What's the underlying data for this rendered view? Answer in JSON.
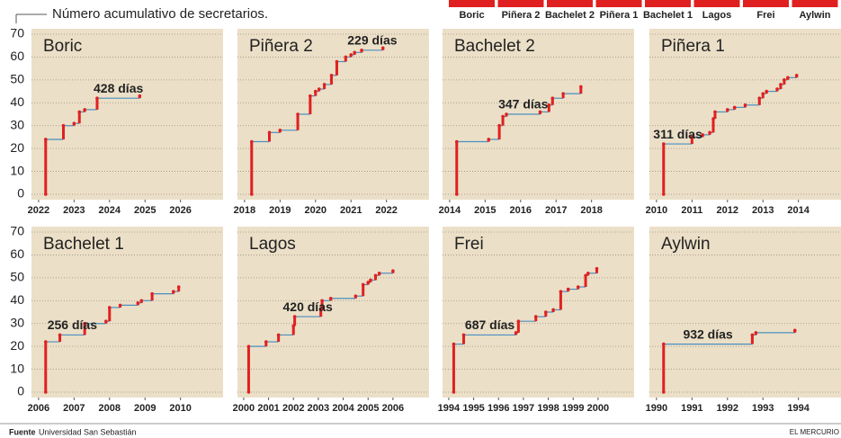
{
  "title": "Número acumulativo de secretarios.",
  "legend": [
    "Boric",
    "Piñera 2",
    "Bachelet 2",
    "Piñera 1",
    "Bachelet 1",
    "Lagos",
    "Frei",
    "Aylwin"
  ],
  "source_label": "Fuente",
  "source": "Universidad San Sebastián",
  "brand": "EL MERCURIO",
  "chart_data": [
    {
      "type": "line",
      "title": "Boric",
      "annotation": "428 días",
      "line_color": "#4a8fc0",
      "step_color": "#e02020",
      "x": [
        2022.2,
        2022.2,
        2022.7,
        2023.0,
        2023.15,
        2023.3,
        2023.65,
        2024.85
      ],
      "values": [
        0,
        24,
        30,
        31,
        36,
        37,
        42,
        43
      ],
      "xlim": [
        2021.8,
        2027.2
      ],
      "xticks": [
        2022,
        2023,
        2024,
        2025,
        2026
      ],
      "ylim": [
        0,
        70
      ],
      "yticks": [
        0,
        10,
        20,
        30,
        40,
        50,
        60,
        70
      ]
    },
    {
      "type": "line",
      "title": "Piñera 2",
      "annotation": "229 días",
      "line_color": "#4a8fc0",
      "step_color": "#e02020",
      "x": [
        2018.2,
        2018.2,
        2018.7,
        2019.0,
        2019.5,
        2019.85,
        2020.0,
        2020.1,
        2020.25,
        2020.45,
        2020.6,
        2020.85,
        2021.0,
        2021.1,
        2021.3,
        2021.9
      ],
      "values": [
        0,
        23,
        27,
        28,
        35,
        43,
        45,
        46,
        48,
        52,
        58,
        60,
        61,
        62,
        63,
        64
      ],
      "xlim": [
        2017.8,
        2023.2
      ],
      "xticks": [
        2018,
        2019,
        2020,
        2021,
        2022
      ],
      "ylim": [
        0,
        70
      ],
      "yticks": [
        0,
        10,
        20,
        30,
        40,
        50,
        60,
        70
      ]
    },
    {
      "type": "line",
      "title": "Bachelet 2",
      "annotation": "347 días",
      "line_color": "#4a8fc0",
      "step_color": "#e02020",
      "x": [
        2014.2,
        2014.2,
        2015.1,
        2015.4,
        2015.5,
        2015.6,
        2016.55,
        2016.8,
        2016.9,
        2017.2,
        2017.7
      ],
      "values": [
        0,
        23,
        24,
        30,
        34,
        35,
        36,
        39,
        42,
        44,
        47
      ],
      "xlim": [
        2013.8,
        2019.2
      ],
      "xticks": [
        2014,
        2015,
        2016,
        2017,
        2018
      ],
      "ylim": [
        0,
        70
      ],
      "yticks": [
        0,
        10,
        20,
        30,
        40,
        50,
        60,
        70
      ]
    },
    {
      "type": "line",
      "title": "Piñera 1",
      "annotation": "311 días",
      "line_color": "#4a8fc0",
      "step_color": "#e02020",
      "x": [
        2010.2,
        2010.2,
        2011.0,
        2011.3,
        2011.5,
        2011.6,
        2011.65,
        2012.0,
        2012.2,
        2012.5,
        2012.9,
        2013.0,
        2013.1,
        2013.4,
        2013.5,
        2013.6,
        2013.7,
        2013.95
      ],
      "values": [
        0,
        22,
        25,
        26,
        27,
        33,
        36,
        37,
        38,
        39,
        42,
        44,
        45,
        46,
        48,
        50,
        51,
        52
      ],
      "xlim": [
        2009.8,
        2015.2
      ],
      "xticks": [
        2010,
        2011,
        2012,
        2013,
        2014
      ],
      "ylim": [
        0,
        70
      ],
      "yticks": [
        0,
        10,
        20,
        30,
        40,
        50,
        60,
        70
      ]
    },
    {
      "type": "line",
      "title": "Bachelet 1",
      "annotation": "256 días",
      "line_color": "#4a8fc0",
      "step_color": "#e02020",
      "x": [
        2006.2,
        2006.2,
        2006.6,
        2007.3,
        2007.9,
        2008.0,
        2008.3,
        2008.8,
        2008.9,
        2009.2,
        2009.8,
        2009.95
      ],
      "values": [
        0,
        22,
        25,
        30,
        31,
        37,
        38,
        39,
        40,
        43,
        44,
        46
      ],
      "xlim": [
        2005.8,
        2011.2
      ],
      "xticks": [
        2006,
        2007,
        2008,
        2009,
        2010
      ],
      "ylim": [
        0,
        70
      ],
      "yticks": [
        0,
        10,
        20,
        30,
        40,
        50,
        60,
        70
      ]
    },
    {
      "type": "line",
      "title": "Lagos",
      "annotation": "420 días",
      "line_color": "#4a8fc0",
      "step_color": "#e02020",
      "x": [
        2000.2,
        2000.2,
        2000.9,
        2001.4,
        2002.0,
        2002.05,
        2003.1,
        2003.15,
        2003.5,
        2004.5,
        2004.8,
        2005.0,
        2005.1,
        2005.3,
        2005.45,
        2006.0
      ],
      "values": [
        0,
        20,
        22,
        25,
        29,
        33,
        36,
        40,
        41,
        42,
        47,
        48,
        49,
        51,
        52,
        53
      ],
      "xlim": [
        1999.75,
        2007.45
      ],
      "xticks": [
        2000,
        2001,
        2002,
        2003,
        2004,
        2005,
        2006
      ],
      "ylim": [
        0,
        70
      ],
      "yticks": [
        0,
        10,
        20,
        30,
        40,
        50,
        60,
        70
      ]
    },
    {
      "type": "line",
      "title": "Frei",
      "annotation": "687 días",
      "line_color": "#4a8fc0",
      "step_color": "#e02020",
      "x": [
        1994.2,
        1994.2,
        1994.6,
        1996.7,
        1996.8,
        1997.5,
        1997.9,
        1998.2,
        1998.5,
        1998.8,
        1999.2,
        1999.5,
        1999.6,
        1999.95
      ],
      "values": [
        0,
        21,
        25,
        26,
        31,
        33,
        35,
        36,
        44,
        45,
        46,
        51,
        52,
        54
      ],
      "xlim": [
        1993.75,
        2001.45
      ],
      "xticks": [
        1994,
        1995,
        1996,
        1997,
        1998,
        1999,
        2000
      ],
      "ylim": [
        0,
        70
      ],
      "yticks": [
        0,
        10,
        20,
        30,
        40,
        50,
        60,
        70
      ]
    },
    {
      "type": "line",
      "title": "Aylwin",
      "annotation": "932 días",
      "line_color": "#4a8fc0",
      "step_color": "#e02020",
      "x": [
        1990.2,
        1990.2,
        1992.7,
        1992.8,
        1993.9
      ],
      "values": [
        0,
        21,
        25,
        26,
        27
      ],
      "xlim": [
        1989.8,
        1995.2
      ],
      "xticks": [
        1990,
        1991,
        1992,
        1993,
        1994
      ],
      "ylim": [
        0,
        70
      ],
      "yticks": [
        0,
        10,
        20,
        30,
        40,
        50,
        60,
        70
      ]
    }
  ]
}
